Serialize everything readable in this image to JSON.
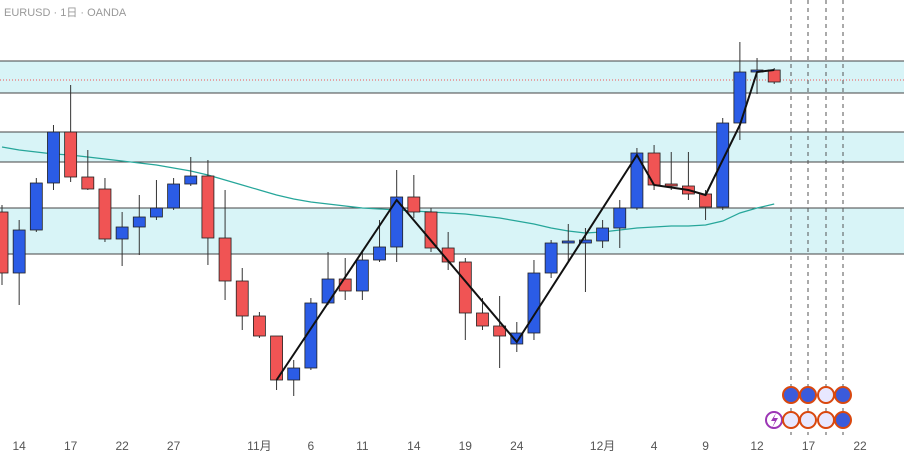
{
  "chart_data": {
    "type": "candlestick",
    "title": "EURUSD · 1日 · OANDA",
    "categories": [
      null,
      "14",
      null,
      null,
      "17",
      null,
      null,
      "22",
      null,
      null,
      "27",
      null,
      null,
      null,
      null,
      "11月",
      null,
      null,
      "6",
      null,
      null,
      "11",
      null,
      null,
      "14",
      null,
      null,
      "19",
      null,
      null,
      "24",
      null,
      null,
      null,
      null,
      "12月",
      null,
      null,
      "4",
      null,
      null,
      "9",
      null,
      null,
      "12",
      null,
      null,
      "17",
      null,
      null,
      "22"
    ],
    "open": [
      223,
      162,
      205,
      252,
      303,
      258,
      246,
      196,
      208,
      218,
      227,
      251,
      259,
      197,
      154,
      119,
      99,
      55,
      67,
      132,
      156,
      144,
      175,
      188,
      238,
      223,
      187,
      173,
      122,
      109,
      91,
      102,
      162,
      192,
      192,
      194,
      207,
      227,
      282,
      251,
      249,
      241,
      228,
      312,
      363,
      365,
      null,
      null,
      null,
      null,
      null
    ],
    "high": [
      230,
      215,
      257,
      310,
      350,
      285,
      257,
      223,
      240,
      255,
      257,
      278,
      275,
      245,
      167,
      123,
      99,
      75,
      137,
      183,
      177,
      185,
      215,
      265,
      260,
      227,
      203,
      177,
      137,
      139,
      113,
      175,
      195,
      211,
      207,
      215,
      235,
      287,
      290,
      283,
      283,
      245,
      317,
      393,
      377,
      367,
      null,
      null,
      null,
      null,
      null
    ],
    "low": [
      150,
      130,
      203,
      245,
      253,
      245,
      193,
      169,
      180,
      215,
      225,
      249,
      170,
      135,
      105,
      97,
      45,
      39,
      65,
      130,
      135,
      135,
      173,
      173,
      217,
      183,
      165,
      95,
      105,
      67,
      83,
      95,
      157,
      173,
      143,
      187,
      187,
      225,
      245,
      245,
      235,
      215,
      225,
      295,
      341,
      351,
      null,
      null,
      null,
      null,
      null
    ],
    "close": [
      162,
      205,
      252,
      303,
      258,
      246,
      196,
      208,
      218,
      227,
      251,
      259,
      197,
      154,
      119,
      99,
      55,
      67,
      132,
      156,
      144,
      175,
      188,
      238,
      223,
      187,
      173,
      122,
      109,
      99,
      102,
      162,
      192,
      194,
      195,
      207,
      227,
      282,
      250,
      249,
      241,
      228,
      312,
      363,
      365,
      353,
      null,
      null,
      null,
      null,
      null
    ],
    "up_color": "#2b5ce6",
    "down_color": "#f05454",
    "ma": {
      "color": "#26a69a",
      "values": [
        288,
        285,
        283,
        281,
        280,
        278,
        276,
        274,
        272,
        270,
        267,
        264,
        260,
        255,
        250,
        245,
        240,
        236,
        233,
        231,
        229,
        227,
        226,
        225,
        224,
        223,
        222,
        221,
        219,
        217,
        214,
        211,
        207,
        204,
        202,
        203,
        205,
        207,
        208,
        209,
        209,
        210,
        214,
        222,
        227,
        231,
        null,
        null,
        null,
        null,
        null
      ]
    },
    "zones": [
      [
        342,
        374
      ],
      [
        273,
        303
      ],
      [
        181,
        227
      ]
    ],
    "price_line": 355,
    "zigzag": {
      "x": [
        16,
        23,
        30,
        37,
        38,
        40,
        41,
        43,
        44,
        45
      ],
      "values": [
        55,
        235,
        93,
        280,
        250,
        245,
        240,
        310,
        363,
        365
      ]
    },
    "ylim": [
      0,
      435
    ]
  }
}
